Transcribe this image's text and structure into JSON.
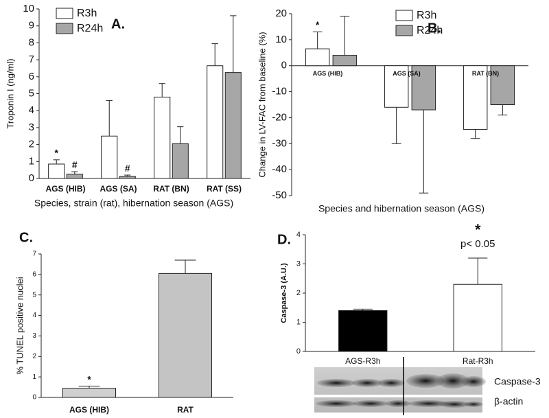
{
  "chart_data": [
    {
      "type": "bar",
      "panel_label": "A.",
      "ylabel": "Troponin I  (ng/ml)",
      "xlabel": "Species, strain (rat), hibernation season  (AGS)",
      "categories": [
        "AGS (HIB)",
        "AGS (SA)",
        "RAT (BN)",
        "RAT (SS)"
      ],
      "series": [
        {
          "name": "R3h",
          "color": "#ffffff",
          "values": [
            0.85,
            2.5,
            4.8,
            6.65
          ],
          "errors": [
            0.25,
            2.1,
            0.8,
            1.3
          ]
        },
        {
          "name": "R24h",
          "color": "#a6a6a6",
          "values": [
            0.25,
            0.12,
            2.05,
            6.25
          ],
          "errors": [
            0.15,
            0.08,
            1.0,
            3.35
          ]
        }
      ],
      "ylim": [
        0,
        10
      ],
      "yticks": [
        0,
        1,
        2,
        3,
        4,
        5,
        6,
        7,
        8,
        9,
        10
      ],
      "annotations": [
        "*",
        "#",
        "#"
      ]
    },
    {
      "type": "bar",
      "panel_label": "B.",
      "ylabel": "Change in LV-FAC  from baseline (%)",
      "xlabel": "Species and hibernation season (AGS)",
      "categories": [
        "AGS (HIB)",
        "AGS (SA)",
        "RAT (BN)"
      ],
      "series": [
        {
          "name": "R3h",
          "color": "#ffffff",
          "values": [
            6.5,
            -16,
            -24.5
          ],
          "errors": [
            6.5,
            14,
            3.5
          ]
        },
        {
          "name": "R24h",
          "color": "#a6a6a6",
          "values": [
            4,
            -17,
            -15
          ],
          "errors": [
            15,
            32,
            4
          ]
        }
      ],
      "ylim": [
        -50,
        20
      ],
      "yticks": [
        -50,
        -40,
        -30,
        -20,
        -10,
        0,
        10,
        20
      ],
      "annotations": [
        "*"
      ]
    },
    {
      "type": "bar",
      "panel_label": "C.",
      "ylabel": "% TUNEL positive nuclei",
      "categories": [
        "AGS (HIB)",
        "RAT"
      ],
      "values": [
        0.45,
        6.05
      ],
      "errors": [
        0.1,
        0.65
      ],
      "colors": [
        "#d0d0d0",
        "#c4c4c4"
      ],
      "ylim": [
        0,
        7
      ],
      "yticks": [
        0,
        1,
        2,
        3,
        4,
        5,
        6,
        7
      ],
      "annotations": [
        "*"
      ]
    },
    {
      "type": "bar",
      "panel_label": "D.",
      "ylabel": "Caspase-3 (A.U.)",
      "categories": [
        "AGS-R3h",
        "Rat-R3h"
      ],
      "values": [
        1.4,
        2.3
      ],
      "errors": [
        0.05,
        0.9
      ],
      "colors": [
        "#000000",
        "#ffffff"
      ],
      "ylim": [
        0,
        4
      ],
      "yticks": [
        0,
        1,
        2,
        3,
        4
      ],
      "annotations": [
        "*",
        "p< 0.05"
      ],
      "blot_labels": [
        "Caspase-3",
        "β-actin"
      ]
    }
  ]
}
